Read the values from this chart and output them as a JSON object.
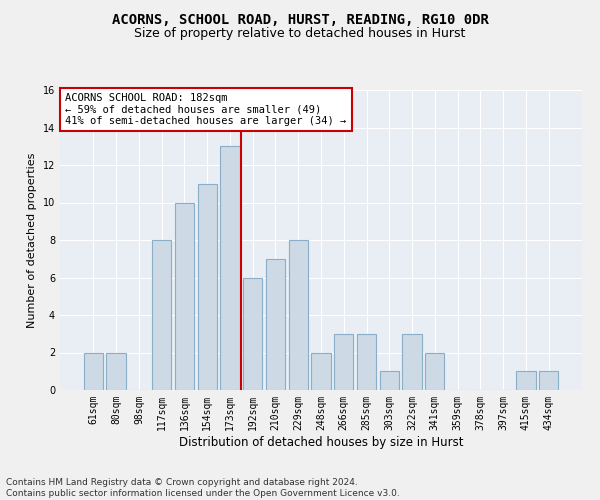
{
  "title": "ACORNS, SCHOOL ROAD, HURST, READING, RG10 0DR",
  "subtitle": "Size of property relative to detached houses in Hurst",
  "xlabel": "Distribution of detached houses by size in Hurst",
  "ylabel": "Number of detached properties",
  "bar_labels": [
    "61sqm",
    "80sqm",
    "98sqm",
    "117sqm",
    "136sqm",
    "154sqm",
    "173sqm",
    "192sqm",
    "210sqm",
    "229sqm",
    "248sqm",
    "266sqm",
    "285sqm",
    "303sqm",
    "322sqm",
    "341sqm",
    "359sqm",
    "378sqm",
    "397sqm",
    "415sqm",
    "434sqm"
  ],
  "bar_values": [
    2,
    2,
    0,
    8,
    10,
    11,
    13,
    6,
    7,
    8,
    2,
    3,
    3,
    1,
    3,
    2,
    0,
    0,
    0,
    1,
    1
  ],
  "bar_color": "#cdd9e5",
  "bar_edge_color": "#8aaec8",
  "property_line_x": 6.5,
  "property_line_color": "#cc0000",
  "ylim": [
    0,
    16
  ],
  "yticks": [
    0,
    2,
    4,
    6,
    8,
    10,
    12,
    14,
    16
  ],
  "annotation_text": "ACORNS SCHOOL ROAD: 182sqm\n← 59% of detached houses are smaller (49)\n41% of semi-detached houses are larger (34) →",
  "annotation_box_color": "#ffffff",
  "annotation_box_edge": "#cc0000",
  "footer_text": "Contains HM Land Registry data © Crown copyright and database right 2024.\nContains public sector information licensed under the Open Government Licence v3.0.",
  "background_color": "#e8eef4",
  "grid_color": "#ffffff",
  "fig_background": "#f0f0f0",
  "title_fontsize": 10,
  "subtitle_fontsize": 9,
  "xlabel_fontsize": 8.5,
  "ylabel_fontsize": 8,
  "tick_fontsize": 7,
  "footer_fontsize": 6.5,
  "ann_fontsize": 7.5
}
